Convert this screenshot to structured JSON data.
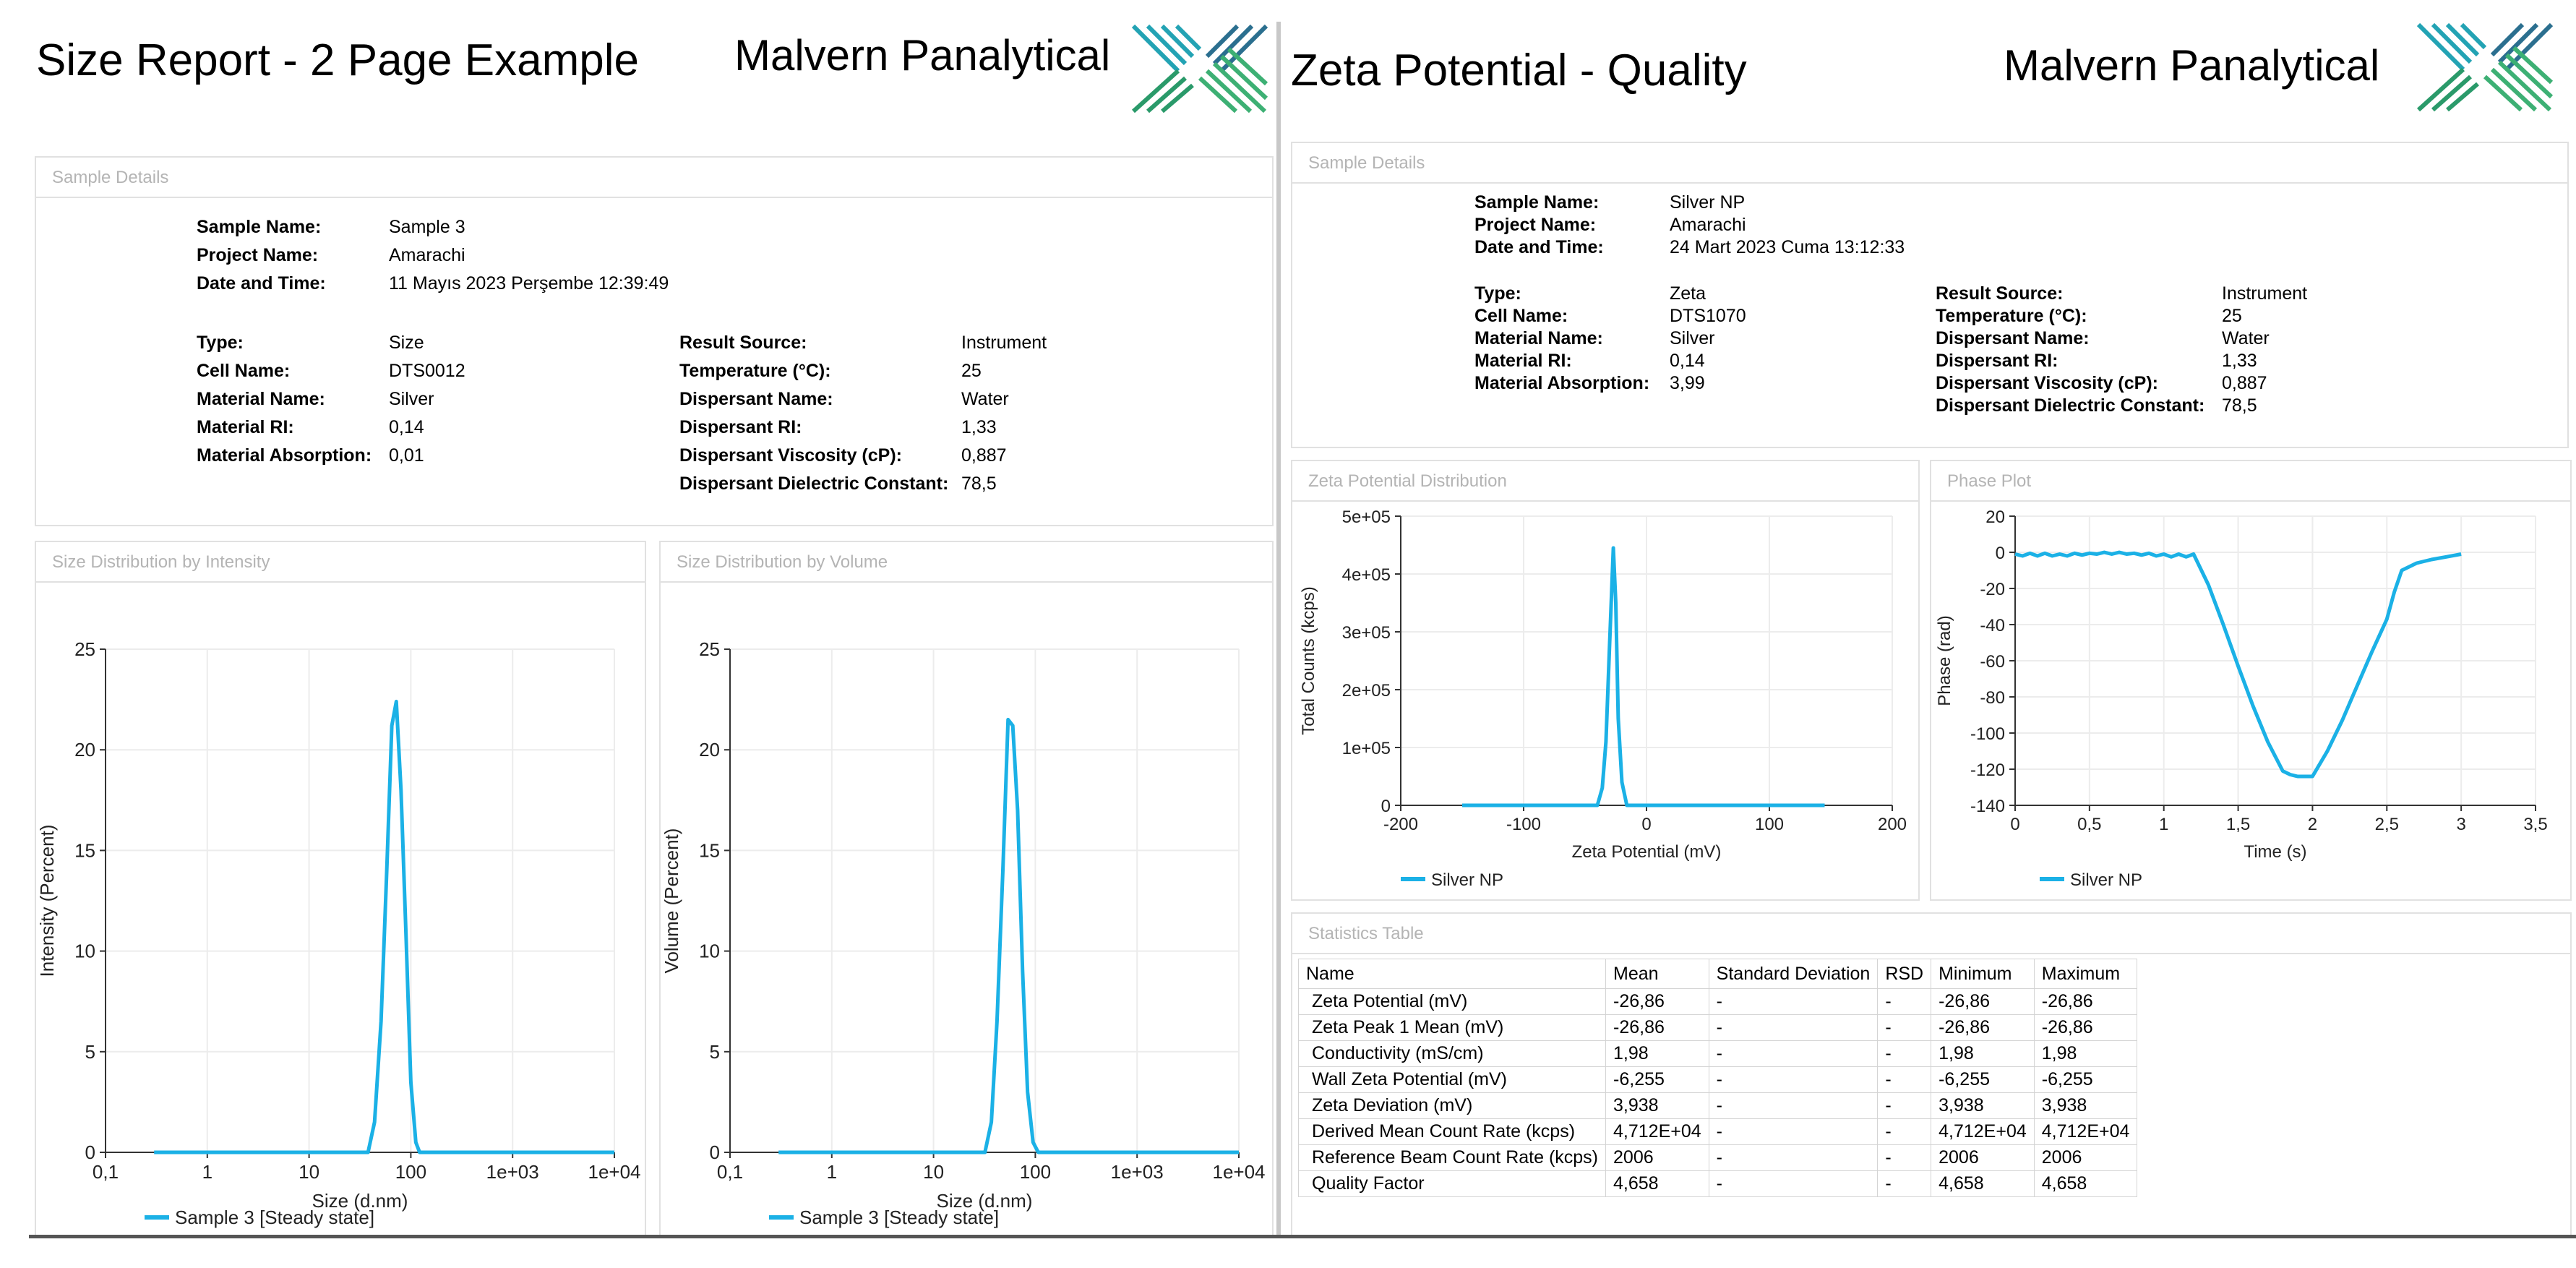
{
  "left_report": {
    "title": "Size Report - 2 Page Example",
    "brand": "Malvern Panalytical",
    "sample_details": {
      "panel_title": "Sample Details",
      "top": [
        {
          "label": "Sample Name:",
          "value": "Sample 3"
        },
        {
          "label": "Project Name:",
          "value": "Amarachi"
        },
        {
          "label": "Date and Time:",
          "value": "11 Mayıs 2023 Perşembe 12:39:49"
        }
      ],
      "col1": [
        {
          "label": "Type:",
          "value": "Size"
        },
        {
          "label": "Cell Name:",
          "value": "DTS0012"
        },
        {
          "label": "Material Name:",
          "value": "Silver"
        },
        {
          "label": "Material RI:",
          "value": "0,14"
        },
        {
          "label": "Material Absorption:",
          "value": "0,01"
        }
      ],
      "col2": [
        {
          "label": "Result Source:",
          "value": "Instrument"
        },
        {
          "label": "Temperature (°C):",
          "value": "25"
        },
        {
          "label": "Dispersant Name:",
          "value": "Water"
        },
        {
          "label": "Dispersant RI:",
          "value": "1,33"
        },
        {
          "label": "Dispersant Viscosity (cP):",
          "value": "0,887"
        },
        {
          "label": "Dispersant Dielectric Constant:",
          "value": "78,5"
        }
      ]
    }
  },
  "right_report": {
    "title": "Zeta Potential - Quality",
    "brand": "Malvern Panalytical",
    "sample_details": {
      "panel_title": "Sample Details",
      "top": [
        {
          "label": "Sample Name:",
          "value": "Silver NP"
        },
        {
          "label": "Project Name:",
          "value": "Amarachi"
        },
        {
          "label": "Date and Time:",
          "value": "24 Mart 2023 Cuma 13:12:33"
        }
      ],
      "col1": [
        {
          "label": "Type:",
          "value": "Zeta"
        },
        {
          "label": "Cell Name:",
          "value": "DTS1070"
        },
        {
          "label": "Material Name:",
          "value": "Silver"
        },
        {
          "label": "Material RI:",
          "value": "0,14"
        },
        {
          "label": "Material Absorption:",
          "value": "3,99"
        }
      ],
      "col2": [
        {
          "label": "Result Source:",
          "value": "Instrument"
        },
        {
          "label": "Temperature (°C):",
          "value": "25"
        },
        {
          "label": "Dispersant Name:",
          "value": "Water"
        },
        {
          "label": "Dispersant RI:",
          "value": "1,33"
        },
        {
          "label": "Dispersant Viscosity (cP):",
          "value": "0,887"
        },
        {
          "label": "Dispersant Dielectric Constant:",
          "value": "78,5"
        }
      ]
    },
    "statistics": {
      "panel_title": "Statistics Table",
      "headers": [
        "Name",
        "Mean",
        "Standard Deviation",
        "RSD",
        "Minimum",
        "Maximum"
      ],
      "rows": [
        [
          "Zeta Potential (mV)",
          "-26,86",
          "-",
          "-",
          "-26,86",
          "-26,86"
        ],
        [
          "Zeta Peak 1 Mean (mV)",
          "-26,86",
          "-",
          "-",
          "-26,86",
          "-26,86"
        ],
        [
          "Conductivity (mS/cm)",
          "1,98",
          "-",
          "-",
          "1,98",
          "1,98"
        ],
        [
          "Wall Zeta Potential (mV)",
          "-6,255",
          "-",
          "-",
          "-6,255",
          "-6,255"
        ],
        [
          "Zeta Deviation (mV)",
          "3,938",
          "-",
          "-",
          "3,938",
          "3,938"
        ],
        [
          "Derived Mean Count Rate (kcps)",
          "4,712E+04",
          "-",
          "-",
          "4,712E+04",
          "4,712E+04"
        ],
        [
          "Reference Beam Count Rate (kcps)",
          "2006",
          "-",
          "-",
          "2006",
          "2006"
        ],
        [
          "Quality Factor",
          "4,658",
          "-",
          "-",
          "4,658",
          "4,658"
        ]
      ]
    }
  },
  "colors": {
    "series": "#1bb1e6",
    "panel_border": "#e1e1e1",
    "panel_title": "#b4b4b4"
  },
  "chart_data": [
    {
      "id": "intensity",
      "panel_title": "Size Distribution by Intensity",
      "type": "line",
      "xscale": "log",
      "xlabel": "Size (d.nm)",
      "ylabel": "Intensity (Percent)",
      "xlim": [
        0.1,
        10000
      ],
      "ylim": [
        0,
        25
      ],
      "xticks": [
        0.1,
        1,
        10,
        100,
        1000,
        10000
      ],
      "xtick_labels": [
        "0,1",
        "1",
        "10",
        "100",
        "1e+03",
        "1e+04"
      ],
      "yticks": [
        0,
        5,
        10,
        15,
        20,
        25
      ],
      "ytick_labels": [
        "0",
        "5",
        "10",
        "15",
        "20",
        "25"
      ],
      "legend_position": "bottom-left",
      "series": [
        {
          "name": "Sample 3 [Steady state]",
          "x": [
            0.3,
            1,
            10,
            38,
            44,
            51,
            58,
            65,
            72,
            80,
            90,
            100,
            112,
            122,
            135,
            10000
          ],
          "y": [
            0,
            0,
            0,
            0,
            1.5,
            6.5,
            14,
            21.2,
            22.4,
            18,
            10.5,
            3.5,
            0.5,
            0,
            0,
            0
          ]
        }
      ]
    },
    {
      "id": "volume",
      "panel_title": "Size Distribution by Volume",
      "type": "line",
      "xscale": "log",
      "xlabel": "Size (d.nm)",
      "ylabel": "Volume (Percent)",
      "xlim": [
        0.1,
        10000
      ],
      "ylim": [
        0,
        25
      ],
      "xticks": [
        0.1,
        1,
        10,
        100,
        1000,
        10000
      ],
      "xtick_labels": [
        "0,1",
        "1",
        "10",
        "100",
        "1e+03",
        "1e+04"
      ],
      "yticks": [
        0,
        5,
        10,
        15,
        20,
        25
      ],
      "ytick_labels": [
        "0",
        "5",
        "10",
        "15",
        "20",
        "25"
      ],
      "legend_position": "bottom-left",
      "series": [
        {
          "name": "Sample 3 [Steady state]",
          "x": [
            0.3,
            1,
            10,
            32,
            37,
            42,
            48,
            54,
            60,
            67,
            75,
            84,
            95,
            107,
            120,
            10000
          ],
          "y": [
            0,
            0,
            0,
            0,
            1.5,
            6.5,
            14,
            21.5,
            21.2,
            17,
            9,
            3,
            0.5,
            0,
            0,
            0
          ]
        }
      ]
    },
    {
      "id": "zeta",
      "panel_title": "Zeta Potential Distribution",
      "type": "line",
      "xlabel": "Zeta Potential (mV)",
      "ylabel": "Total Counts (kcps)",
      "xlim": [
        -200,
        200
      ],
      "ylim": [
        0,
        500000
      ],
      "xticks": [
        -200,
        -100,
        0,
        100,
        200
      ],
      "xtick_labels": [
        "-200",
        "-100",
        "0",
        "100",
        "200"
      ],
      "yticks": [
        0,
        100000,
        200000,
        300000,
        400000,
        500000
      ],
      "ytick_labels": [
        "0",
        "1e+05",
        "2e+05",
        "3e+05",
        "4e+05",
        "5e+05"
      ],
      "legend_position": "bottom-left",
      "series": [
        {
          "name": "Silver NP",
          "x": [
            -150,
            -40,
            -36,
            -33,
            -30,
            -27,
            -25,
            -23,
            -20,
            -16,
            145
          ],
          "y": [
            0,
            0,
            30000,
            110000,
            280000,
            445000,
            350000,
            150000,
            40000,
            0,
            0
          ]
        }
      ]
    },
    {
      "id": "phase",
      "panel_title": "Phase Plot",
      "type": "line",
      "xlabel": "Time (s)",
      "ylabel": "Phase (rad)",
      "xlim": [
        0,
        3.5
      ],
      "ylim": [
        -140,
        20
      ],
      "xticks": [
        0,
        0.5,
        1,
        1.5,
        2,
        2.5,
        3,
        3.5
      ],
      "xtick_labels": [
        "0",
        "0,5",
        "1",
        "1,5",
        "2",
        "2,5",
        "3",
        "3,5"
      ],
      "yticks": [
        -140,
        -120,
        -100,
        -80,
        -60,
        -40,
        -20,
        0,
        20
      ],
      "ytick_labels": [
        "-140",
        "-120",
        "-100",
        "-80",
        "-60",
        "-40",
        "-20",
        "0",
        "20"
      ],
      "legend_position": "bottom-left",
      "series": [
        {
          "name": "Silver NP",
          "x": [
            0,
            0.05,
            0.1,
            0.15,
            0.2,
            0.25,
            0.3,
            0.35,
            0.4,
            0.45,
            0.5,
            0.55,
            0.6,
            0.65,
            0.7,
            0.75,
            0.8,
            0.85,
            0.9,
            0.95,
            1.0,
            1.05,
            1.1,
            1.15,
            1.2,
            1.3,
            1.4,
            1.5,
            1.6,
            1.7,
            1.8,
            1.85,
            1.9,
            1.95,
            2.0,
            2.1,
            2.2,
            2.3,
            2.4,
            2.5,
            2.55,
            2.6,
            2.7,
            2.8,
            2.9,
            3.0
          ],
          "y": [
            -1,
            -2,
            -0.5,
            -2,
            -0.5,
            -2,
            -1,
            -2,
            -0.5,
            -1.5,
            -0.5,
            -1,
            0,
            -1,
            0,
            -1,
            -0.5,
            -1.5,
            -0.5,
            -2,
            -1,
            -2.5,
            -1,
            -2.5,
            -1,
            -18,
            -40,
            -63,
            -85,
            -105,
            -121,
            -123,
            -124,
            -124,
            -124,
            -110,
            -93,
            -74,
            -55,
            -37,
            -22,
            -10,
            -6,
            -4,
            -2.5,
            -1
          ]
        }
      ]
    }
  ]
}
